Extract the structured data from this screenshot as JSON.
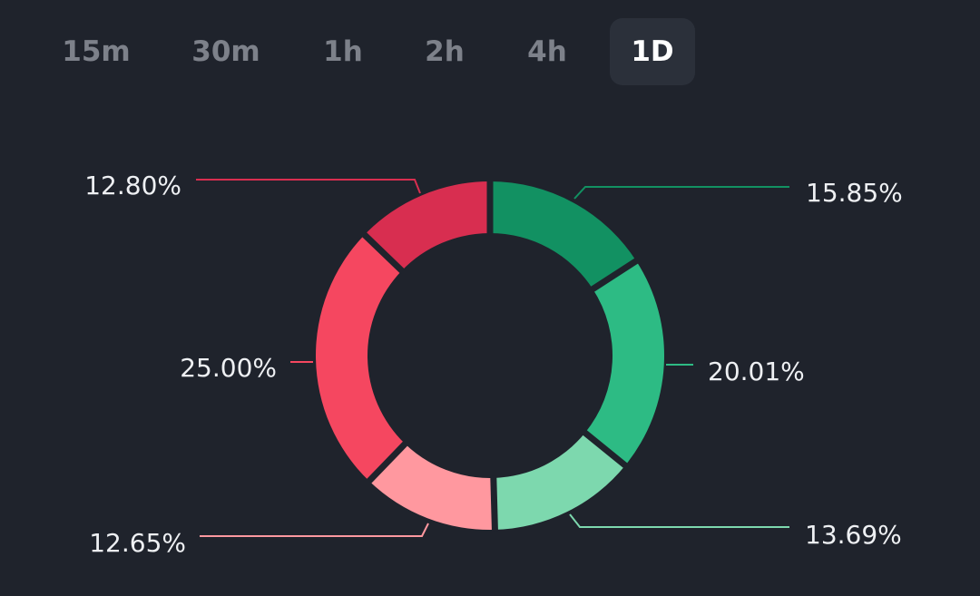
{
  "tabs": [
    {
      "label": "15m"
    },
    {
      "label": "30m"
    },
    {
      "label": "1h"
    },
    {
      "label": "2h"
    },
    {
      "label": "4h"
    },
    {
      "label": "1D",
      "active": true
    }
  ],
  "colors": {
    "background": "#1f232c",
    "tab_active_bg": "#2b303a",
    "tab_inactive_text": "#7d818a",
    "tab_active_text": "#ffffff",
    "label_text": "#eef0f3"
  },
  "chart_data": {
    "type": "pie",
    "style": "donut",
    "slices": [
      {
        "value": 15.85,
        "label": "15.85%",
        "color": "#129162"
      },
      {
        "value": 20.01,
        "label": "20.01%",
        "color": "#2dbb84"
      },
      {
        "value": 13.69,
        "label": "13.69%",
        "color": "#7dd8ae"
      },
      {
        "value": 12.65,
        "label": "12.65%",
        "color": "#ff989f"
      },
      {
        "value": 25.0,
        "label": "25.00%",
        "color": "#f54760"
      },
      {
        "value": 12.8,
        "label": "12.80%",
        "color": "#d82e50"
      }
    ],
    "start": "top",
    "direction": "clockwise",
    "legend": "none"
  }
}
